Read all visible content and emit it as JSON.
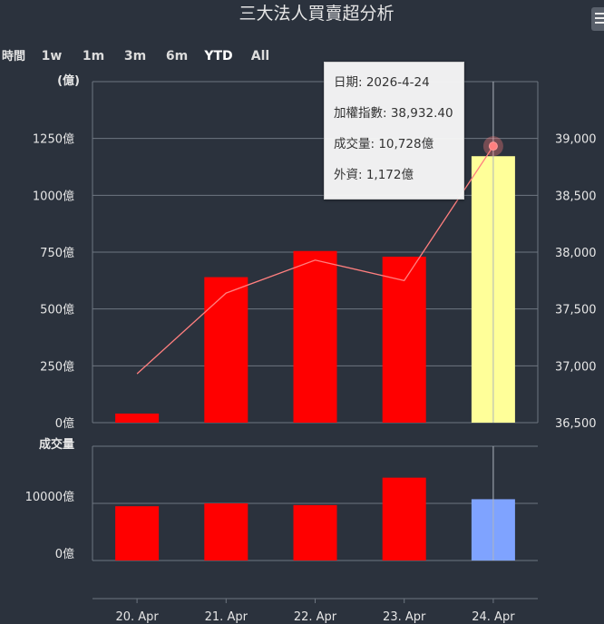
{
  "title": "三大法人買賣超分析",
  "range_selector": {
    "label": "時間",
    "buttons": [
      "1w",
      "1m",
      "3m",
      "6m",
      "YTD",
      "All"
    ],
    "selected": "YTD"
  },
  "chart_data": [
    {
      "type": "bar",
      "panel": "upper",
      "ylabel": "(億)",
      "categories": [
        "20. Apr",
        "21. Apr",
        "22. Apr",
        "23. Apr",
        "24. Apr"
      ],
      "series": [
        {
          "name": "外資",
          "type": "bar",
          "axis": "left",
          "values": [
            40,
            640,
            755,
            730,
            1172
          ]
        },
        {
          "name": "加權指數",
          "type": "line",
          "axis": "right",
          "values": [
            36930,
            37640,
            37930,
            37750,
            38932.4
          ]
        }
      ],
      "left_axis": {
        "ticks": [
          0,
          250,
          500,
          750,
          1000,
          1250
        ],
        "tick_labels": [
          "0億",
          "250億",
          "500億",
          "750億",
          "1000億",
          "1250億"
        ],
        "range": [
          0,
          1500
        ]
      },
      "right_axis": {
        "ticks": [
          36500,
          37000,
          37500,
          38000,
          38500,
          39000
        ],
        "tick_labels": [
          "36,500",
          "37,000",
          "37,500",
          "38,000",
          "38,500",
          "39,000"
        ],
        "range": [
          36500,
          39500
        ]
      },
      "grid": true
    },
    {
      "type": "bar",
      "panel": "lower",
      "ylabel": "成交量",
      "categories": [
        "20. Apr",
        "21. Apr",
        "22. Apr",
        "23. Apr",
        "24. Apr"
      ],
      "series": [
        {
          "name": "成交量",
          "values": [
            9500,
            10000,
            9700,
            14500,
            10728
          ]
        }
      ],
      "left_axis": {
        "ticks": [
          0,
          10000
        ],
        "tick_labels": [
          "0億",
          "10000億"
        ],
        "range": [
          0,
          20000
        ]
      },
      "grid": true
    }
  ],
  "colors": {
    "background": "#2b323d",
    "bar": "#ff0000",
    "bar_highlight": "#ffff99",
    "volume_highlight": "#7fa3ff",
    "line": "#ff7f7f",
    "grid": "#6e7681"
  },
  "highlight_index": 4,
  "tooltip": {
    "date": "日期: 2026-4-24",
    "index": "加權指數: 38,932.40",
    "volume": "成交量: 10,728億",
    "foreign": "外資: 1,172億"
  },
  "menu_icon": "hamburger-menu-icon"
}
